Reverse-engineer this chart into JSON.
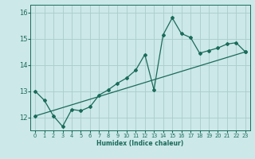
{
  "xlabel": "Humidex (Indice chaleur)",
  "xlim": [
    -0.5,
    23.5
  ],
  "ylim": [
    11.5,
    16.3
  ],
  "yticks": [
    12,
    13,
    14,
    15,
    16
  ],
  "xticks": [
    0,
    1,
    2,
    3,
    4,
    5,
    6,
    7,
    8,
    9,
    10,
    11,
    12,
    13,
    14,
    15,
    16,
    17,
    18,
    19,
    20,
    21,
    22,
    23
  ],
  "bg_color": "#cce8e8",
  "grid_color": "#aacccc",
  "line_color": "#1a6b5a",
  "curve1_x": [
    0,
    1,
    2,
    3,
    4,
    5,
    6,
    7,
    8,
    9,
    10,
    11,
    12,
    13,
    14,
    15,
    16,
    17,
    18,
    19,
    20,
    21,
    22,
    23
  ],
  "curve1_y": [
    13.0,
    12.65,
    12.05,
    11.65,
    12.3,
    12.25,
    12.4,
    12.85,
    13.05,
    13.3,
    13.5,
    13.8,
    14.4,
    13.05,
    15.15,
    15.8,
    15.2,
    15.05,
    14.45,
    14.55,
    14.65,
    14.8,
    14.85,
    14.5
  ],
  "curve2_x": [
    0,
    23
  ],
  "curve2_y": [
    12.05,
    14.5
  ]
}
